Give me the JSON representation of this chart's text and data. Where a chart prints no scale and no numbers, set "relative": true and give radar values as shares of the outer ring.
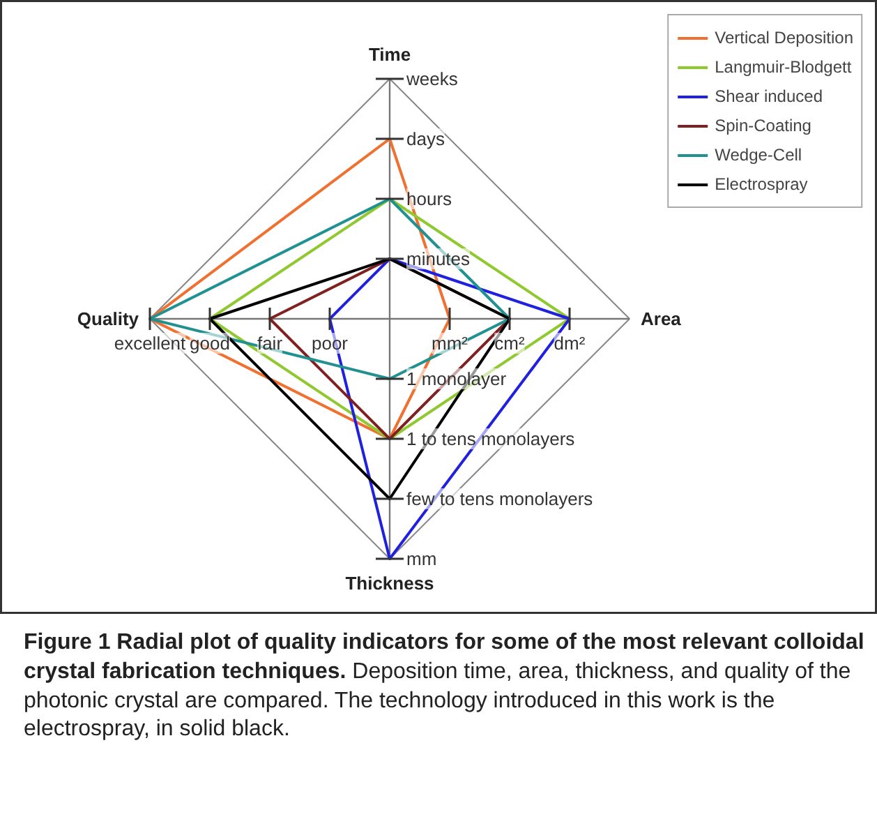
{
  "chart_data": {
    "type": "radar",
    "title": "Figure 1 Radial plot of quality indicators for some of the most relevant colloidal crystal fabrication techniques.",
    "subtitle": "Deposition time, area, thickness, and quality of the photonic crystal are compared. The technology introduced in this work is the electrospray, in solid black.",
    "categories": [
      "Time",
      "Area",
      "Thickness",
      "Quality"
    ],
    "relative": true,
    "grid": true,
    "legend": "top right",
    "series": [
      {
        "name": "Vertical Deposition",
        "color": "#f07030",
        "values": [
          0.75,
          0.25,
          0.5,
          1
        ]
      },
      {
        "name": "Langmuir-Blodgett",
        "color": "#90c830",
        "values": [
          0.5,
          0.75,
          0.5,
          0.75
        ]
      },
      {
        "name": "Shear induced",
        "color": "#2020e0",
        "values": [
          0.25,
          0.75,
          1,
          0.25
        ]
      },
      {
        "name": "Spin-Coating",
        "color": "#802020",
        "values": [
          0.25,
          0.5,
          0.5,
          0.5
        ]
      },
      {
        "name": "Wedge-Cell",
        "color": "#209090",
        "values": [
          0.5,
          0.5,
          0.25,
          1
        ]
      },
      {
        "name": "Electrospray",
        "color": "#000000",
        "values": [
          0.25,
          0.5,
          0.75,
          0.75
        ]
      }
    ],
    "annotations": [
      {
        "text": "minutes",
        "x": "Time"
      },
      {
        "text": "hours",
        "x": "Time"
      },
      {
        "text": "days",
        "x": "Time"
      },
      {
        "text": "weeks",
        "x": "Time"
      },
      {
        "text": "mm²",
        "x": "Area"
      },
      {
        "text": "cm²",
        "x": "Area"
      },
      {
        "text": "dm²",
        "x": "Area"
      },
      {
        "text": "1 monolayer",
        "x": "Thickness"
      },
      {
        "text": "1 to tens monolayers",
        "x": "Thickness"
      },
      {
        "text": "few to tens monolayers",
        "x": "Thickness"
      },
      {
        "text": "mm",
        "x": "Thickness"
      },
      {
        "text": "poor",
        "x": "Quality"
      },
      {
        "text": "fair",
        "x": "Quality"
      },
      {
        "text": "good",
        "x": "Quality"
      },
      {
        "text": "excellent",
        "x": "Quality"
      }
    ]
  }
}
